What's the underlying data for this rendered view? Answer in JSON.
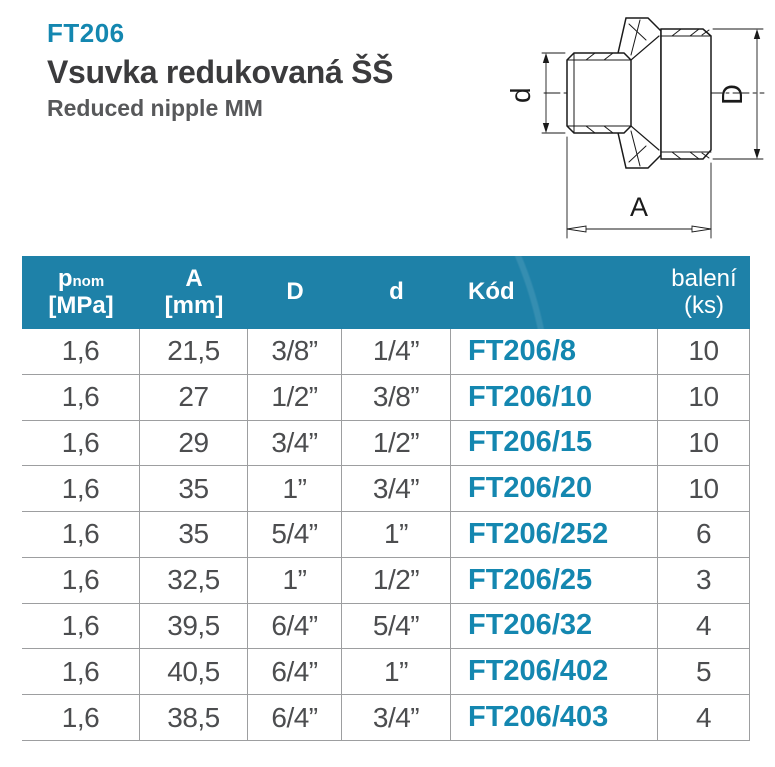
{
  "page": {
    "product_code": "FT206",
    "title_cs": "Vsuvka redukovaná ŠŠ",
    "title_en": "Reduced nipple MM"
  },
  "drawing": {
    "dim_small_diameter_label": "d",
    "dim_large_diameter_label": "D",
    "dim_length_label": "A"
  },
  "colors": {
    "header_bg": "#1e81a8",
    "accent": "#1487b0",
    "title_dark": "#3b3b3d",
    "title_gray": "#57585a",
    "cell_text": "#4c4d4f",
    "grid_line": "#9d9ea0"
  },
  "table": {
    "columns": [
      {
        "id": "pnom",
        "label_main": "p",
        "label_sub": "nom",
        "label_line2": "[MPa]"
      },
      {
        "id": "a",
        "label_main": "A",
        "label_line2": "[mm]"
      },
      {
        "id": "D",
        "label_main": "D"
      },
      {
        "id": "d",
        "label_main": "d"
      },
      {
        "id": "kod",
        "label_main": "Kód"
      },
      {
        "id": "baleni",
        "label_main": "balení",
        "label_line2": "(ks)"
      }
    ],
    "rows": [
      {
        "pnom": "1,6",
        "a": "21,5",
        "D": "3/8”",
        "d": "1/4”",
        "kod": "FT206/8",
        "baleni": "10"
      },
      {
        "pnom": "1,6",
        "a": "27",
        "D": "1/2”",
        "d": "3/8”",
        "kod": "FT206/10",
        "baleni": "10"
      },
      {
        "pnom": "1,6",
        "a": "29",
        "D": "3/4”",
        "d": "1/2”",
        "kod": "FT206/15",
        "baleni": "10"
      },
      {
        "pnom": "1,6",
        "a": "35",
        "D": "1”",
        "d": "3/4”",
        "kod": "FT206/20",
        "baleni": "10"
      },
      {
        "pnom": "1,6",
        "a": "35",
        "D": "5/4”",
        "d": "1”",
        "kod": "FT206/252",
        "baleni": "6"
      },
      {
        "pnom": "1,6",
        "a": "32,5",
        "D": "1”",
        "d": "1/2”",
        "kod": "FT206/25",
        "baleni": "3"
      },
      {
        "pnom": "1,6",
        "a": "39,5",
        "D": "6/4”",
        "d": "5/4”",
        "kod": "FT206/32",
        "baleni": "4"
      },
      {
        "pnom": "1,6",
        "a": "40,5",
        "D": "6/4”",
        "d": "1”",
        "kod": "FT206/402",
        "baleni": "5"
      },
      {
        "pnom": "1,6",
        "a": "38,5",
        "D": "6/4”",
        "d": "3/4”",
        "kod": "FT206/403",
        "baleni": "4"
      }
    ]
  }
}
